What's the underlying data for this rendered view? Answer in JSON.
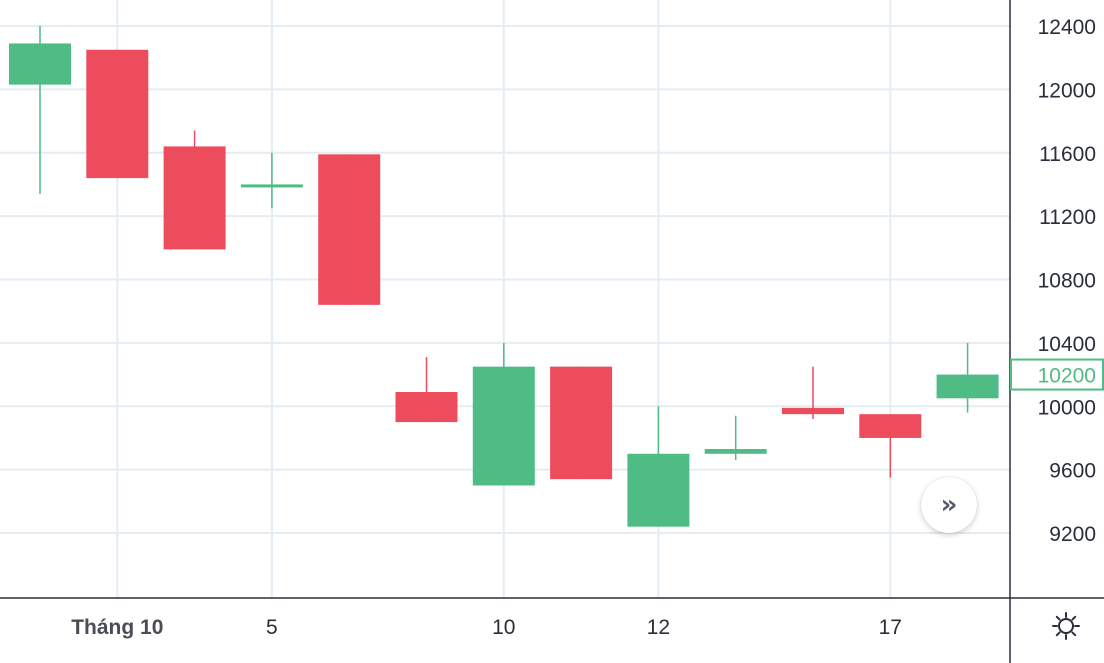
{
  "chart_data": {
    "type": "candlestick",
    "ylim": [
      8800,
      12560
    ],
    "y_ticks": [
      9200,
      9600,
      10000,
      10400,
      10800,
      11200,
      11600,
      12000,
      12400
    ],
    "x_ticks": [
      {
        "index": 1,
        "label": "Tháng 10",
        "bold": true
      },
      {
        "index": 3,
        "label": "5",
        "bold": false
      },
      {
        "index": 6,
        "label": "10",
        "bold": false
      },
      {
        "index": 8,
        "label": "12",
        "bold": false
      },
      {
        "index": 11,
        "label": "17",
        "bold": false
      }
    ],
    "candles": [
      {
        "open": 12030,
        "close": 12290,
        "high": 12400,
        "low": 11340
      },
      {
        "open": 12250,
        "close": 11440,
        "high": 12250,
        "low": 11440
      },
      {
        "open": 11640,
        "close": 10990,
        "high": 11740,
        "low": 10990
      },
      {
        "open": 11390,
        "close": 11400,
        "high": 11600,
        "low": 11250
      },
      {
        "open": 11590,
        "close": 10640,
        "high": 11590,
        "low": 10640
      },
      {
        "open": 10090,
        "close": 9900,
        "high": 10310,
        "low": 9900
      },
      {
        "open": 9500,
        "close": 10250,
        "high": 10400,
        "low": 9500
      },
      {
        "open": 10250,
        "close": 9540,
        "high": 10250,
        "low": 9540
      },
      {
        "open": 9240,
        "close": 9700,
        "high": 10000,
        "low": 9240
      },
      {
        "open": 9700,
        "close": 9730,
        "high": 9940,
        "low": 9660
      },
      {
        "open": 9990,
        "close": 9950,
        "high": 10250,
        "low": 9920
      },
      {
        "open": 9950,
        "close": 9800,
        "high": 9950,
        "low": 9550
      },
      {
        "open": 10050,
        "close": 10200,
        "high": 10400,
        "low": 9960
      }
    ],
    "last_price_label": "10200",
    "colors": {
      "up": "#4fbb85",
      "down": "#ec4c5c",
      "grid": "#e4ecf4",
      "axis": "#2a2e39"
    }
  },
  "controls": {
    "scroll_icon": "double-chevron-right-icon",
    "settings_icon": "gear-icon"
  }
}
